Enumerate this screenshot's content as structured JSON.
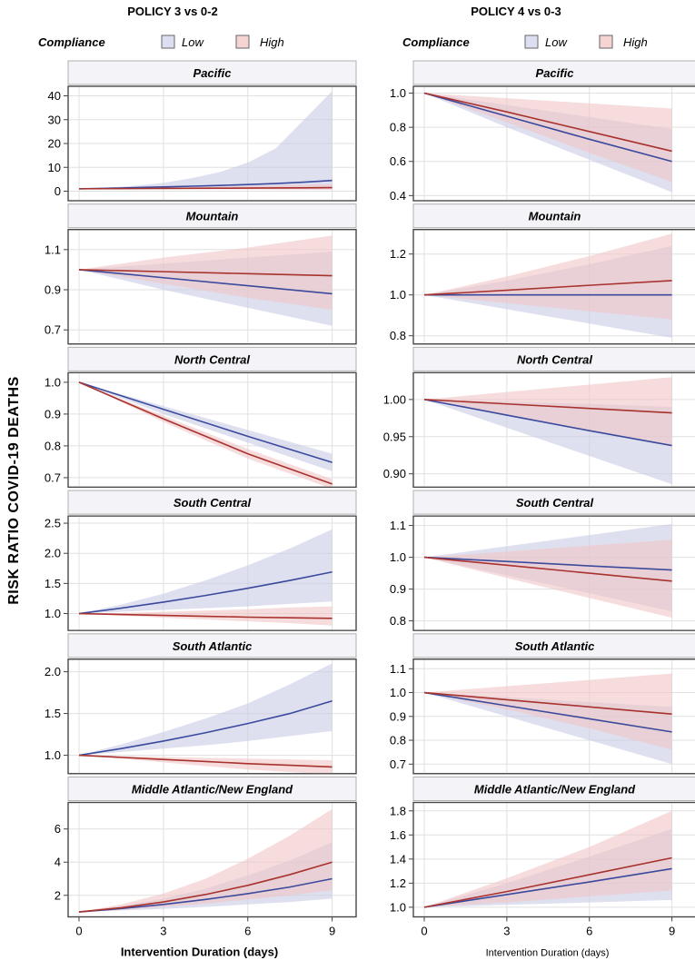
{
  "ylabel": "RISK RATIO COVID-19 DEATHS",
  "legend": {
    "title": "Compliance",
    "items": [
      {
        "label": "Low",
        "line": "#3b4a9c",
        "fill": "#c8cce6",
        "swatch": "#dcdff0"
      },
      {
        "label": "High",
        "line": "#a8322e",
        "fill": "#f0c4c4",
        "swatch": "#f6d4d4"
      }
    ]
  },
  "chart_data": [
    {
      "title": "POLICY 3 vs 0-2",
      "type": "line",
      "xlabel": "Intervention Duration (days)",
      "xlim": [
        0,
        9
      ],
      "xticks": [
        0,
        3,
        6,
        9
      ],
      "panels": [
        {
          "name": "Pacific",
          "ylim": [
            -4,
            44
          ],
          "yticks": [
            0,
            10,
            20,
            30,
            40
          ],
          "ytick_labels": [
            "0",
            "10",
            "20",
            "30",
            "40"
          ],
          "x": [
            0,
            1,
            2,
            3,
            4,
            5,
            6,
            7,
            8,
            9
          ],
          "series": [
            {
              "name": "Low",
              "values": [
                1,
                1.2,
                1.5,
                1.8,
                2.1,
                2.4,
                2.8,
                3.2,
                3.8,
                4.5
              ],
              "lower": [
                1,
                1,
                1,
                0.95,
                0.95,
                0.9,
                0.9,
                0.85,
                0.85,
                0.8
              ],
              "upper": [
                1,
                1.5,
                2.3,
                3.5,
                5.5,
                8,
                12,
                18,
                30,
                42
              ]
            },
            {
              "name": "High",
              "values": [
                1,
                1.05,
                1.1,
                1.15,
                1.2,
                1.25,
                1.3,
                1.35,
                1.4,
                1.5
              ],
              "lower": [
                1,
                0.95,
                0.9,
                0.85,
                0.8,
                0.75,
                0.7,
                0.65,
                0.6,
                0.55
              ],
              "upper": [
                1,
                1.15,
                1.3,
                1.5,
                1.7,
                1.9,
                2.1,
                2.4,
                2.7,
                3
              ]
            }
          ]
        },
        {
          "name": "Mountain",
          "ylim": [
            0.63,
            1.2
          ],
          "yticks": [
            0.7,
            0.9,
            1.1
          ],
          "ytick_labels": [
            "0.7",
            "0.9",
            "1.1"
          ],
          "x": [
            0,
            3,
            6,
            9
          ],
          "series": [
            {
              "name": "Low",
              "values": [
                1.0,
                0.96,
                0.92,
                0.88
              ],
              "lower": [
                1.0,
                0.9,
                0.81,
                0.72
              ],
              "upper": [
                1.0,
                1.03,
                1.06,
                1.09
              ]
            },
            {
              "name": "High",
              "values": [
                1.0,
                0.99,
                0.98,
                0.97
              ],
              "lower": [
                1.0,
                0.93,
                0.86,
                0.8
              ],
              "upper": [
                1.0,
                1.06,
                1.11,
                1.17
              ]
            }
          ]
        },
        {
          "name": "North Central",
          "ylim": [
            0.67,
            1.03
          ],
          "yticks": [
            0.7,
            0.8,
            0.9,
            1.0
          ],
          "ytick_labels": [
            "0.7",
            "0.8",
            "0.9",
            "1.0"
          ],
          "x": [
            0,
            3,
            6,
            9
          ],
          "series": [
            {
              "name": "Low",
              "values": [
                1.0,
                0.915,
                0.83,
                0.748
              ],
              "lower": [
                1.0,
                0.9,
                0.81,
                0.72
              ],
              "upper": [
                1.0,
                0.925,
                0.85,
                0.775
              ]
            },
            {
              "name": "High",
              "values": [
                1.0,
                0.885,
                0.775,
                0.68
              ],
              "lower": [
                1.0,
                0.875,
                0.76,
                0.665
              ],
              "upper": [
                1.0,
                0.895,
                0.79,
                0.695
              ]
            }
          ]
        },
        {
          "name": "South Central",
          "ylim": [
            0.72,
            2.62
          ],
          "yticks": [
            1.0,
            1.5,
            2.0,
            2.5
          ],
          "ytick_labels": [
            "1.0",
            "1.5",
            "2.0",
            "2.5"
          ],
          "x": [
            0,
            1.5,
            3,
            4.5,
            6,
            7.5,
            9
          ],
          "series": [
            {
              "name": "Low",
              "values": [
                1.0,
                1.09,
                1.19,
                1.3,
                1.42,
                1.55,
                1.69
              ],
              "lower": [
                1.0,
                1.03,
                1.06,
                1.09,
                1.12,
                1.16,
                1.2
              ],
              "upper": [
                1.0,
                1.15,
                1.33,
                1.55,
                1.8,
                2.08,
                2.4
              ]
            },
            {
              "name": "High",
              "values": [
                1.0,
                0.985,
                0.97,
                0.955,
                0.94,
                0.93,
                0.92
              ],
              "lower": [
                1.0,
                0.965,
                0.93,
                0.9,
                0.87,
                0.84,
                0.8
              ],
              "upper": [
                1.0,
                1.01,
                1.03,
                1.05,
                1.07,
                1.1,
                1.12
              ]
            }
          ]
        },
        {
          "name": "South Atlantic",
          "ylim": [
            0.78,
            2.15
          ],
          "yticks": [
            1.0,
            1.5,
            2.0
          ],
          "ytick_labels": [
            "1.0",
            "1.5",
            "2.0"
          ],
          "x": [
            0,
            1.5,
            3,
            4.5,
            6,
            7.5,
            9
          ],
          "series": [
            {
              "name": "Low",
              "values": [
                1.0,
                1.08,
                1.17,
                1.27,
                1.38,
                1.5,
                1.65
              ],
              "lower": [
                1.0,
                1.04,
                1.08,
                1.12,
                1.17,
                1.23,
                1.29
              ],
              "upper": [
                1.0,
                1.13,
                1.28,
                1.44,
                1.62,
                1.85,
                2.1
              ]
            },
            {
              "name": "High",
              "values": [
                1.0,
                0.975,
                0.95,
                0.925,
                0.9,
                0.88,
                0.86
              ],
              "lower": [
                1.0,
                0.96,
                0.915,
                0.87,
                0.83,
                0.8,
                0.77
              ],
              "upper": [
                1.0,
                0.99,
                0.98,
                0.97,
                0.96,
                0.95,
                0.94
              ]
            }
          ]
        },
        {
          "name": "Middle Atlantic/New England",
          "ylim": [
            0.7,
            7.6
          ],
          "yticks": [
            2,
            4,
            6
          ],
          "ytick_labels": [
            "2",
            "4",
            "6"
          ],
          "x": [
            0,
            1.5,
            3,
            4.5,
            6,
            7.5,
            9
          ],
          "series": [
            {
              "name": "Low",
              "values": [
                1.0,
                1.2,
                1.45,
                1.75,
                2.1,
                2.5,
                3.0
              ],
              "lower": [
                1.0,
                1.08,
                1.18,
                1.3,
                1.45,
                1.6,
                1.8
              ],
              "upper": [
                1.0,
                1.35,
                1.8,
                2.4,
                3.2,
                4.1,
                5.2
              ]
            },
            {
              "name": "High",
              "values": [
                1.0,
                1.25,
                1.6,
                2.05,
                2.6,
                3.25,
                4.0
              ],
              "lower": [
                1.0,
                1.12,
                1.3,
                1.5,
                1.75,
                2.0,
                2.3
              ],
              "upper": [
                1.0,
                1.45,
                2.1,
                3.0,
                4.2,
                5.6,
                7.2
              ]
            }
          ]
        }
      ]
    },
    {
      "title": "POLICY 4 vs 0-3",
      "type": "line",
      "xlabel": "Intervention Duration (days)",
      "xlim": [
        0,
        9
      ],
      "xticks": [
        0,
        3,
        6,
        9
      ],
      "panels": [
        {
          "name": "Pacific",
          "ylim": [
            0.37,
            1.04
          ],
          "yticks": [
            0.4,
            0.6,
            0.8,
            1.0
          ],
          "ytick_labels": [
            "0.4",
            "0.6",
            "0.8",
            "1.0"
          ],
          "x": [
            0,
            3,
            6,
            9
          ],
          "series": [
            {
              "name": "Low",
              "values": [
                1.0,
                0.865,
                0.73,
                0.6
              ],
              "lower": [
                1.0,
                0.8,
                0.61,
                0.42
              ],
              "upper": [
                1.0,
                0.93,
                0.86,
                0.79
              ]
            },
            {
              "name": "High",
              "values": [
                1.0,
                0.89,
                0.775,
                0.66
              ],
              "lower": [
                1.0,
                0.83,
                0.65,
                0.48
              ],
              "upper": [
                1.0,
                0.97,
                0.94,
                0.91
              ]
            }
          ]
        },
        {
          "name": "Mountain",
          "ylim": [
            0.76,
            1.32
          ],
          "yticks": [
            0.8,
            1.0,
            1.2
          ],
          "ytick_labels": [
            "0.8",
            "1.0",
            "1.2"
          ],
          "x": [
            0,
            3,
            6,
            9
          ],
          "series": [
            {
              "name": "Low",
              "values": [
                1.0,
                1.0,
                1.0,
                1.0
              ],
              "lower": [
                1.0,
                0.93,
                0.86,
                0.79
              ],
              "upper": [
                1.0,
                1.07,
                1.15,
                1.24
              ]
            },
            {
              "name": "High",
              "values": [
                1.0,
                1.023,
                1.047,
                1.07
              ],
              "lower": [
                1.0,
                0.96,
                0.92,
                0.88
              ],
              "upper": [
                1.0,
                1.09,
                1.19,
                1.3
              ]
            }
          ]
        },
        {
          "name": "North Central",
          "ylim": [
            0.882,
            1.036
          ],
          "yticks": [
            0.9,
            0.95,
            1.0
          ],
          "ytick_labels": [
            "0.90",
            "0.95",
            "1.00"
          ],
          "x": [
            0,
            3,
            6,
            9
          ],
          "series": [
            {
              "name": "Low",
              "values": [
                1.0,
                0.979,
                0.958,
                0.938
              ],
              "lower": [
                1.0,
                0.962,
                0.924,
                0.886
              ],
              "upper": [
                1.0,
                0.997,
                0.994,
                0.99
              ]
            },
            {
              "name": "High",
              "values": [
                1.0,
                0.994,
                0.988,
                0.982
              ],
              "lower": [
                1.0,
                0.979,
                0.958,
                0.937
              ],
              "upper": [
                1.0,
                1.01,
                1.02,
                1.03
              ]
            }
          ]
        },
        {
          "name": "South Central",
          "ylim": [
            0.77,
            1.13
          ],
          "yticks": [
            0.8,
            0.9,
            1.0,
            1.1
          ],
          "ytick_labels": [
            "0.8",
            "0.9",
            "1.0",
            "1.1"
          ],
          "x": [
            0,
            3,
            6,
            9
          ],
          "series": [
            {
              "name": "Low",
              "values": [
                1.0,
                0.987,
                0.973,
                0.96
              ],
              "lower": [
                1.0,
                0.943,
                0.887,
                0.83
              ],
              "upper": [
                1.0,
                1.035,
                1.07,
                1.105
              ]
            },
            {
              "name": "High",
              "values": [
                1.0,
                0.975,
                0.95,
                0.925
              ],
              "lower": [
                1.0,
                0.935,
                0.872,
                0.81
              ],
              "upper": [
                1.0,
                1.018,
                1.037,
                1.055
              ]
            }
          ]
        },
        {
          "name": "South Atlantic",
          "ylim": [
            0.66,
            1.14
          ],
          "yticks": [
            0.7,
            0.8,
            0.9,
            1.0,
            1.1
          ],
          "ytick_labels": [
            "0.7",
            "0.8",
            "0.9",
            "1.0",
            "1.1"
          ],
          "x": [
            0,
            3,
            6,
            9
          ],
          "series": [
            {
              "name": "Low",
              "values": [
                1.0,
                0.945,
                0.89,
                0.835
              ],
              "lower": [
                1.0,
                0.9,
                0.8,
                0.7
              ],
              "upper": [
                1.0,
                0.98,
                0.96,
                0.94
              ]
            },
            {
              "name": "High",
              "values": [
                1.0,
                0.97,
                0.94,
                0.91
              ],
              "lower": [
                1.0,
                0.93,
                0.85,
                0.76
              ],
              "upper": [
                1.0,
                1.027,
                1.053,
                1.08
              ]
            }
          ]
        },
        {
          "name": "Middle Atlantic/New England",
          "ylim": [
            0.92,
            1.87
          ],
          "yticks": [
            1.0,
            1.2,
            1.4,
            1.6,
            1.8
          ],
          "ytick_labels": [
            "1.0",
            "1.2",
            "1.4",
            "1.6",
            "1.8"
          ],
          "x": [
            0,
            3,
            6,
            9
          ],
          "series": [
            {
              "name": "Low",
              "values": [
                1.0,
                1.105,
                1.21,
                1.32
              ],
              "lower": [
                1.0,
                1.02,
                1.04,
                1.06
              ],
              "upper": [
                1.0,
                1.2,
                1.42,
                1.65
              ]
            },
            {
              "name": "High",
              "values": [
                1.0,
                1.13,
                1.27,
                1.41
              ],
              "lower": [
                1.0,
                1.04,
                1.09,
                1.14
              ],
              "upper": [
                1.0,
                1.24,
                1.5,
                1.8
              ]
            }
          ]
        }
      ]
    }
  ]
}
